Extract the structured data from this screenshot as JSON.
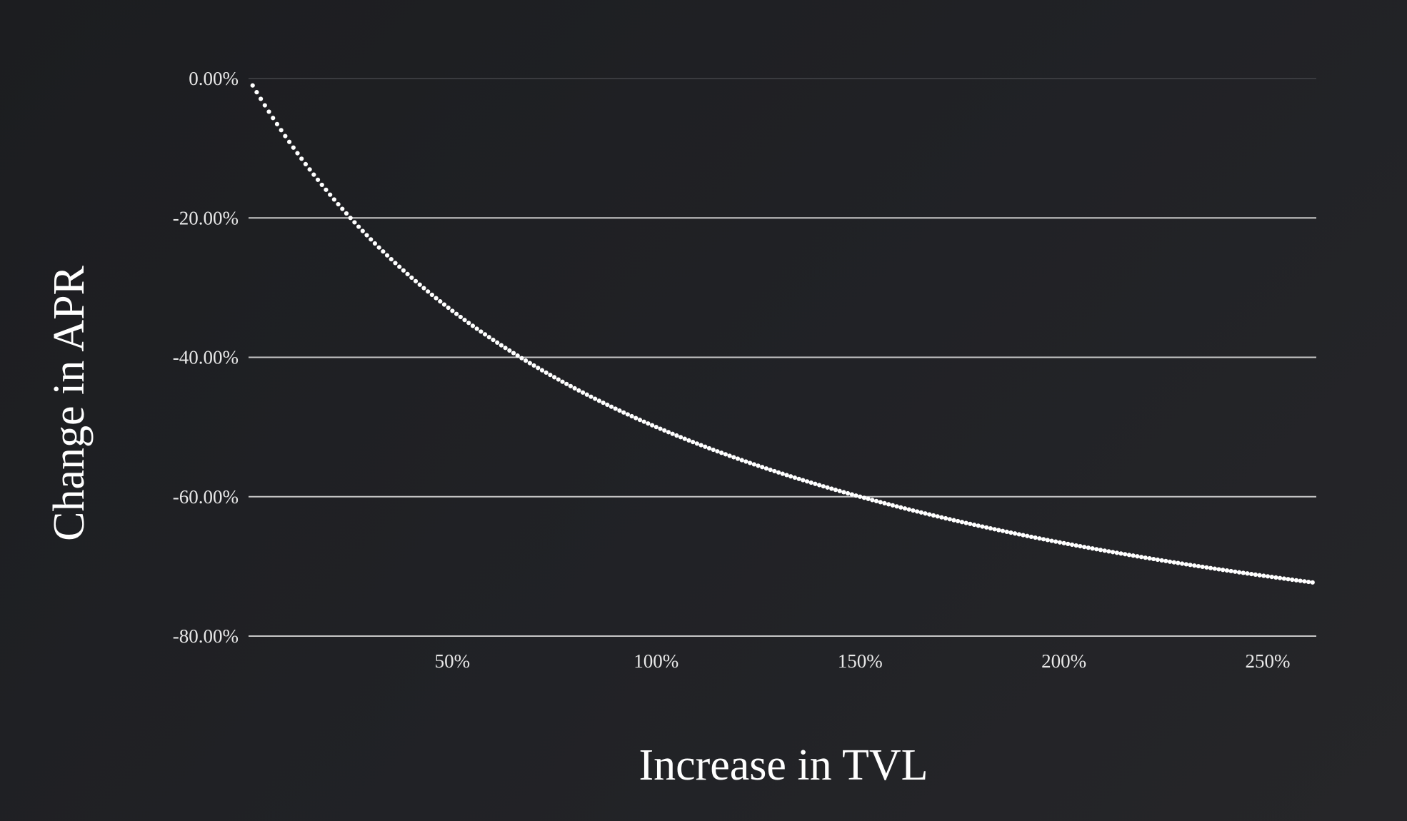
{
  "chart_data": {
    "type": "scatter",
    "title": "",
    "xlabel": "Increase in TVL",
    "ylabel": "Change in APR",
    "xlim": [
      0,
      262
    ],
    "ylim": [
      -80,
      0
    ],
    "x_ticks": [
      50,
      100,
      150,
      200,
      250
    ],
    "x_tick_labels": [
      "50%",
      "100%",
      "150%",
      "200%",
      "250%"
    ],
    "y_ticks": [
      0,
      -20,
      -40,
      -60,
      -80
    ],
    "y_tick_labels": [
      "0.00%",
      "-20.00%",
      "-40.00%",
      "-60.00%",
      "-80.00%"
    ],
    "grid": "horizontal",
    "legend": "none",
    "relation": "y = -x / (100 + x) * 100",
    "series": [
      {
        "x": [
          1,
          10,
          25,
          50,
          67,
          75,
          100,
          125,
          150,
          175,
          200,
          225,
          250,
          261
        ],
        "y": [
          -0.99,
          -9.09,
          -20,
          -33.33,
          -40.12,
          -42.86,
          -50,
          -55.56,
          -60,
          -63.64,
          -66.67,
          -69.23,
          -71.43,
          -72.3
        ]
      }
    ],
    "colors": {
      "background": "#212226",
      "series": "#ffffff",
      "grid": "#c8c8c8",
      "grid_top": "#3a3b3f",
      "tick_text": "#e8e8e8",
      "title_text": "#ffffff"
    }
  }
}
